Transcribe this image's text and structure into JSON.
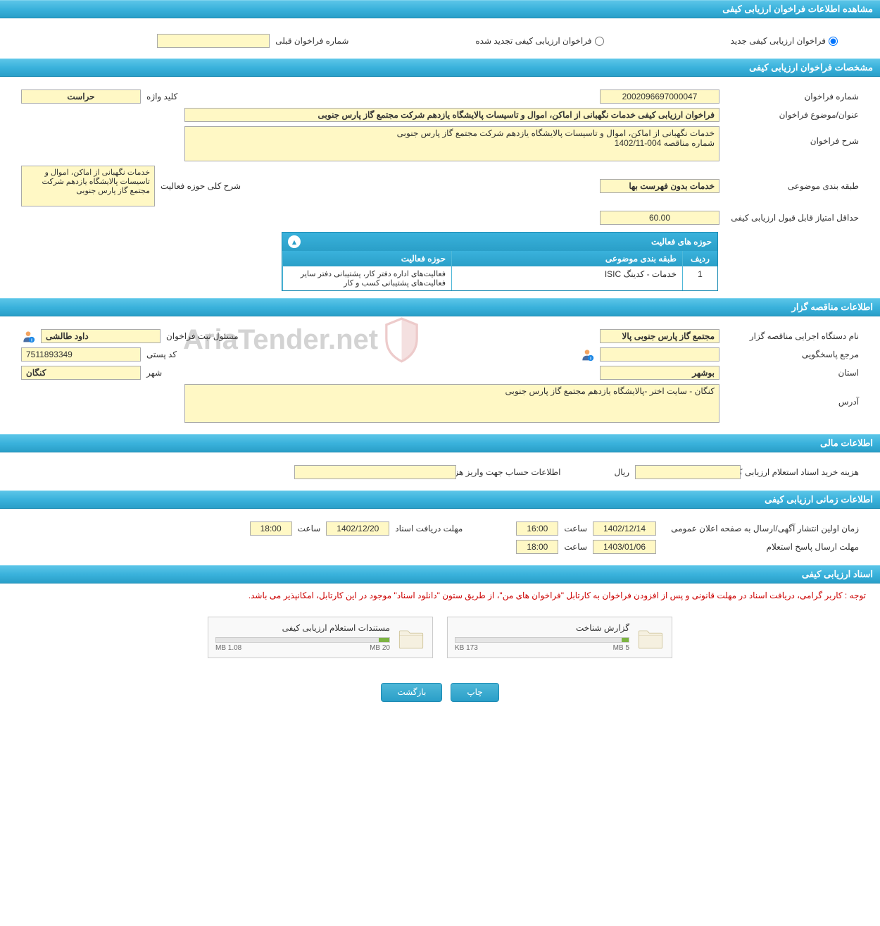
{
  "header_main": "مشاهده اطلاعات فراخوان ارزیابی کیفی",
  "call_type": {
    "new_label": "فراخوان ارزیابی کیفی جدید",
    "renewed_label": "فراخوان ارزیابی کیفی تجدید شده",
    "prev_number_label": "شماره فراخوان قبلی",
    "prev_number_value": ""
  },
  "specs": {
    "header": "مشخصات فراخوان ارزیابی کیفی",
    "number_label": "شماره فراخوان",
    "number_value": "2002096697000047",
    "keyword_label": "کلید واژه",
    "keyword_value": "حراست",
    "title_label": "عنوان/موضوع فراخوان",
    "title_value": "فراخوان ارزیابی کیفی خدمات نگهبانی از اماکن، اموال و تاسیسات پالایشگاه یازدهم شرکت مجتمع گاز پارس جنوبی",
    "desc_label": "شرح فراخوان",
    "desc_value": "خدمات نگهبانی از اماکن، اموال و تاسیسات پالایشگاه یازدهم شرکت مجتمع گاز پارس جنوبی\nشماره مناقصه 004-1402/11",
    "category_label": "طبقه بندی موضوعی",
    "category_value": "خدمات بدون فهرست بها",
    "activity_scope_label": "شرح کلی حوزه فعالیت",
    "activity_scope_value": "خدمات نگهبانی از اماکن، اموال و تاسیسات پالایشگاه یازدهم شرکت مجتمع گاز پارس جنوبی",
    "min_score_label": "حداقل امتیاز قابل قبول ارزیابی کیفی",
    "min_score_value": "60.00",
    "activities_header": "حوزه های فعالیت",
    "activities": {
      "col_idx": "ردیف",
      "col_category": "طبقه بندی موضوعی",
      "col_activity": "حوزه فعالیت",
      "rows": [
        {
          "idx": "1",
          "category": "خدمات - کدینگ ISIC",
          "activity": "فعالیت‌های اداره دفتر کار، پشتیبانی دفتر سایر فعالیت‌های پشتیبانی کسب و کار"
        }
      ]
    }
  },
  "tenderer": {
    "header": "اطلاعات مناقصه گزار",
    "org_label": "نام دستگاه اجرایی مناقصه گزار",
    "org_value": "مجتمع گاز پارس جنوبی  پالا",
    "registrar_label": "مسئول ثبت فراخوان",
    "registrar_value": "داود طالشی",
    "responder_label": "مرجع پاسخگویی",
    "responder_value": "",
    "postal_label": "کد پستی",
    "postal_value": "7511893349",
    "province_label": "استان",
    "province_value": "بوشهر",
    "city_label": "شهر",
    "city_value": "کنگان",
    "address_label": "آدرس",
    "address_value": "کنگان - سایت اختر -پالایشگاه یازدهم مجتمع گاز پارس جنوبی"
  },
  "financial": {
    "header": "اطلاعات مالی",
    "cost_label": "هزینه خرید اسناد استعلام ارزیابی کیفی",
    "cost_value": "",
    "rial": "ریال",
    "account_label": "اطلاعات حساب جهت واریز هزینه خرید اسناد",
    "account_value": ""
  },
  "timing": {
    "header": "اطلاعات زمانی ارزیابی کیفی",
    "publish_label": "زمان اولین انتشار آگهی/ارسال به صفحه اعلان عمومی",
    "publish_date": "1402/12/14",
    "time_label": "ساعت",
    "publish_time": "16:00",
    "receive_label": "مهلت دریافت اسناد",
    "receive_date": "1402/12/20",
    "receive_time": "18:00",
    "response_label": "مهلت ارسال پاسخ استعلام",
    "response_date": "1403/01/06",
    "response_time": "18:00"
  },
  "docs": {
    "header": "اسناد ارزیابی کیفی",
    "notice": "توجه : کاربر گرامی، دریافت اسناد در مهلت قانونی و پس از افزودن فراخوان به کارتابل \"فراخوان های من\"، از طریق ستون \"دانلود اسناد\" موجود در این کارتابل، امکانپذیر می باشد.",
    "doc1_title": "گزارش شناخت",
    "doc1_size": "173 KB",
    "doc1_max": "5 MB",
    "doc1_pct": 4,
    "doc2_title": "مستندات استعلام ارزیابی کیفی",
    "doc2_size": "1.08 MB",
    "doc2_max": "20 MB",
    "doc2_pct": 6
  },
  "buttons": {
    "print": "چاپ",
    "back": "بازگشت"
  },
  "watermark_text": "AriaTender.net",
  "colors": {
    "header_bg": "#2a9fc8",
    "field_bg": "#fff8c5",
    "notice_color": "#cc0000"
  }
}
